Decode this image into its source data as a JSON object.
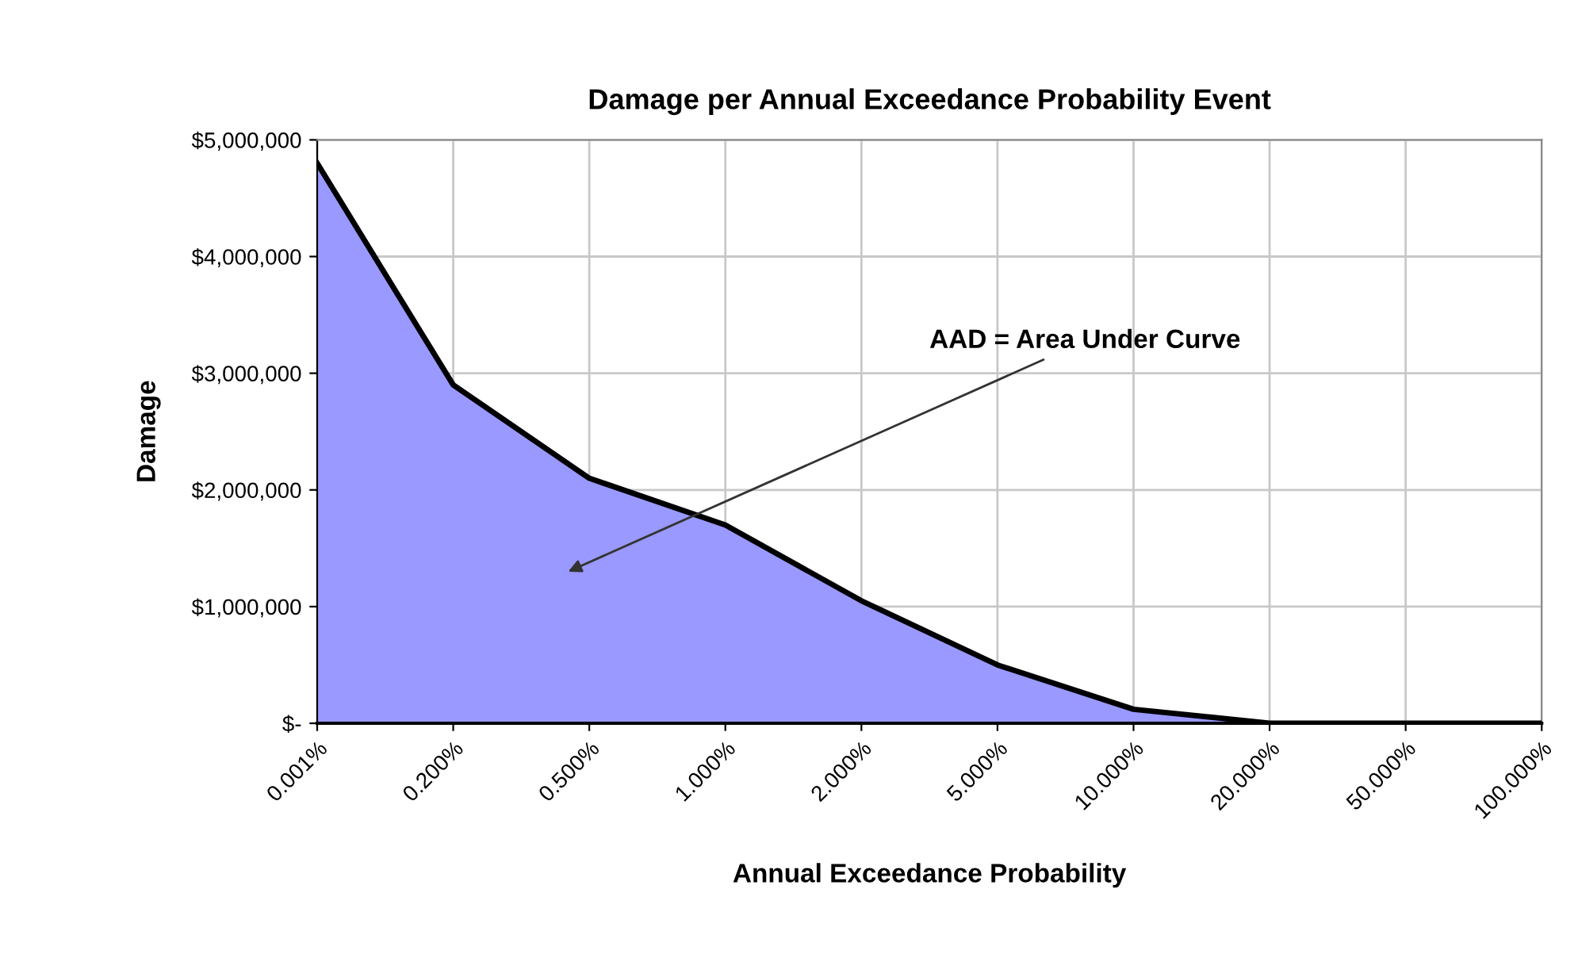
{
  "chart_data": {
    "type": "area",
    "title": "Damage per Annual Exceedance Probability Event",
    "xlabel": "Annual Exceedance Probability",
    "ylabel": "Damage",
    "categories": [
      "0.001%",
      "0.200%",
      "0.500%",
      "1.000%",
      "2.000%",
      "5.000%",
      "10.000%",
      "20.000%",
      "50.000%",
      "100.000%"
    ],
    "series": [
      {
        "color": "#9999ff",
        "values": [
          4800000,
          2900000,
          2100000,
          1700000,
          1050000,
          500000,
          120000,
          0,
          0,
          0
        ]
      }
    ],
    "ylim": [
      0,
      5000000
    ],
    "yticks": [
      {
        "value": 0,
        "label": "$-"
      },
      {
        "value": 1000000,
        "label": "$1,000,000"
      },
      {
        "value": 2000000,
        "label": "$2,000,000"
      },
      {
        "value": 3000000,
        "label": "$3,000,000"
      },
      {
        "value": 4000000,
        "label": "$4,000,000"
      },
      {
        "value": 5000000,
        "label": "$5,000,000"
      }
    ],
    "annotations": [
      "AAD = Area Under Curve"
    ],
    "grid": true,
    "legend": false
  }
}
